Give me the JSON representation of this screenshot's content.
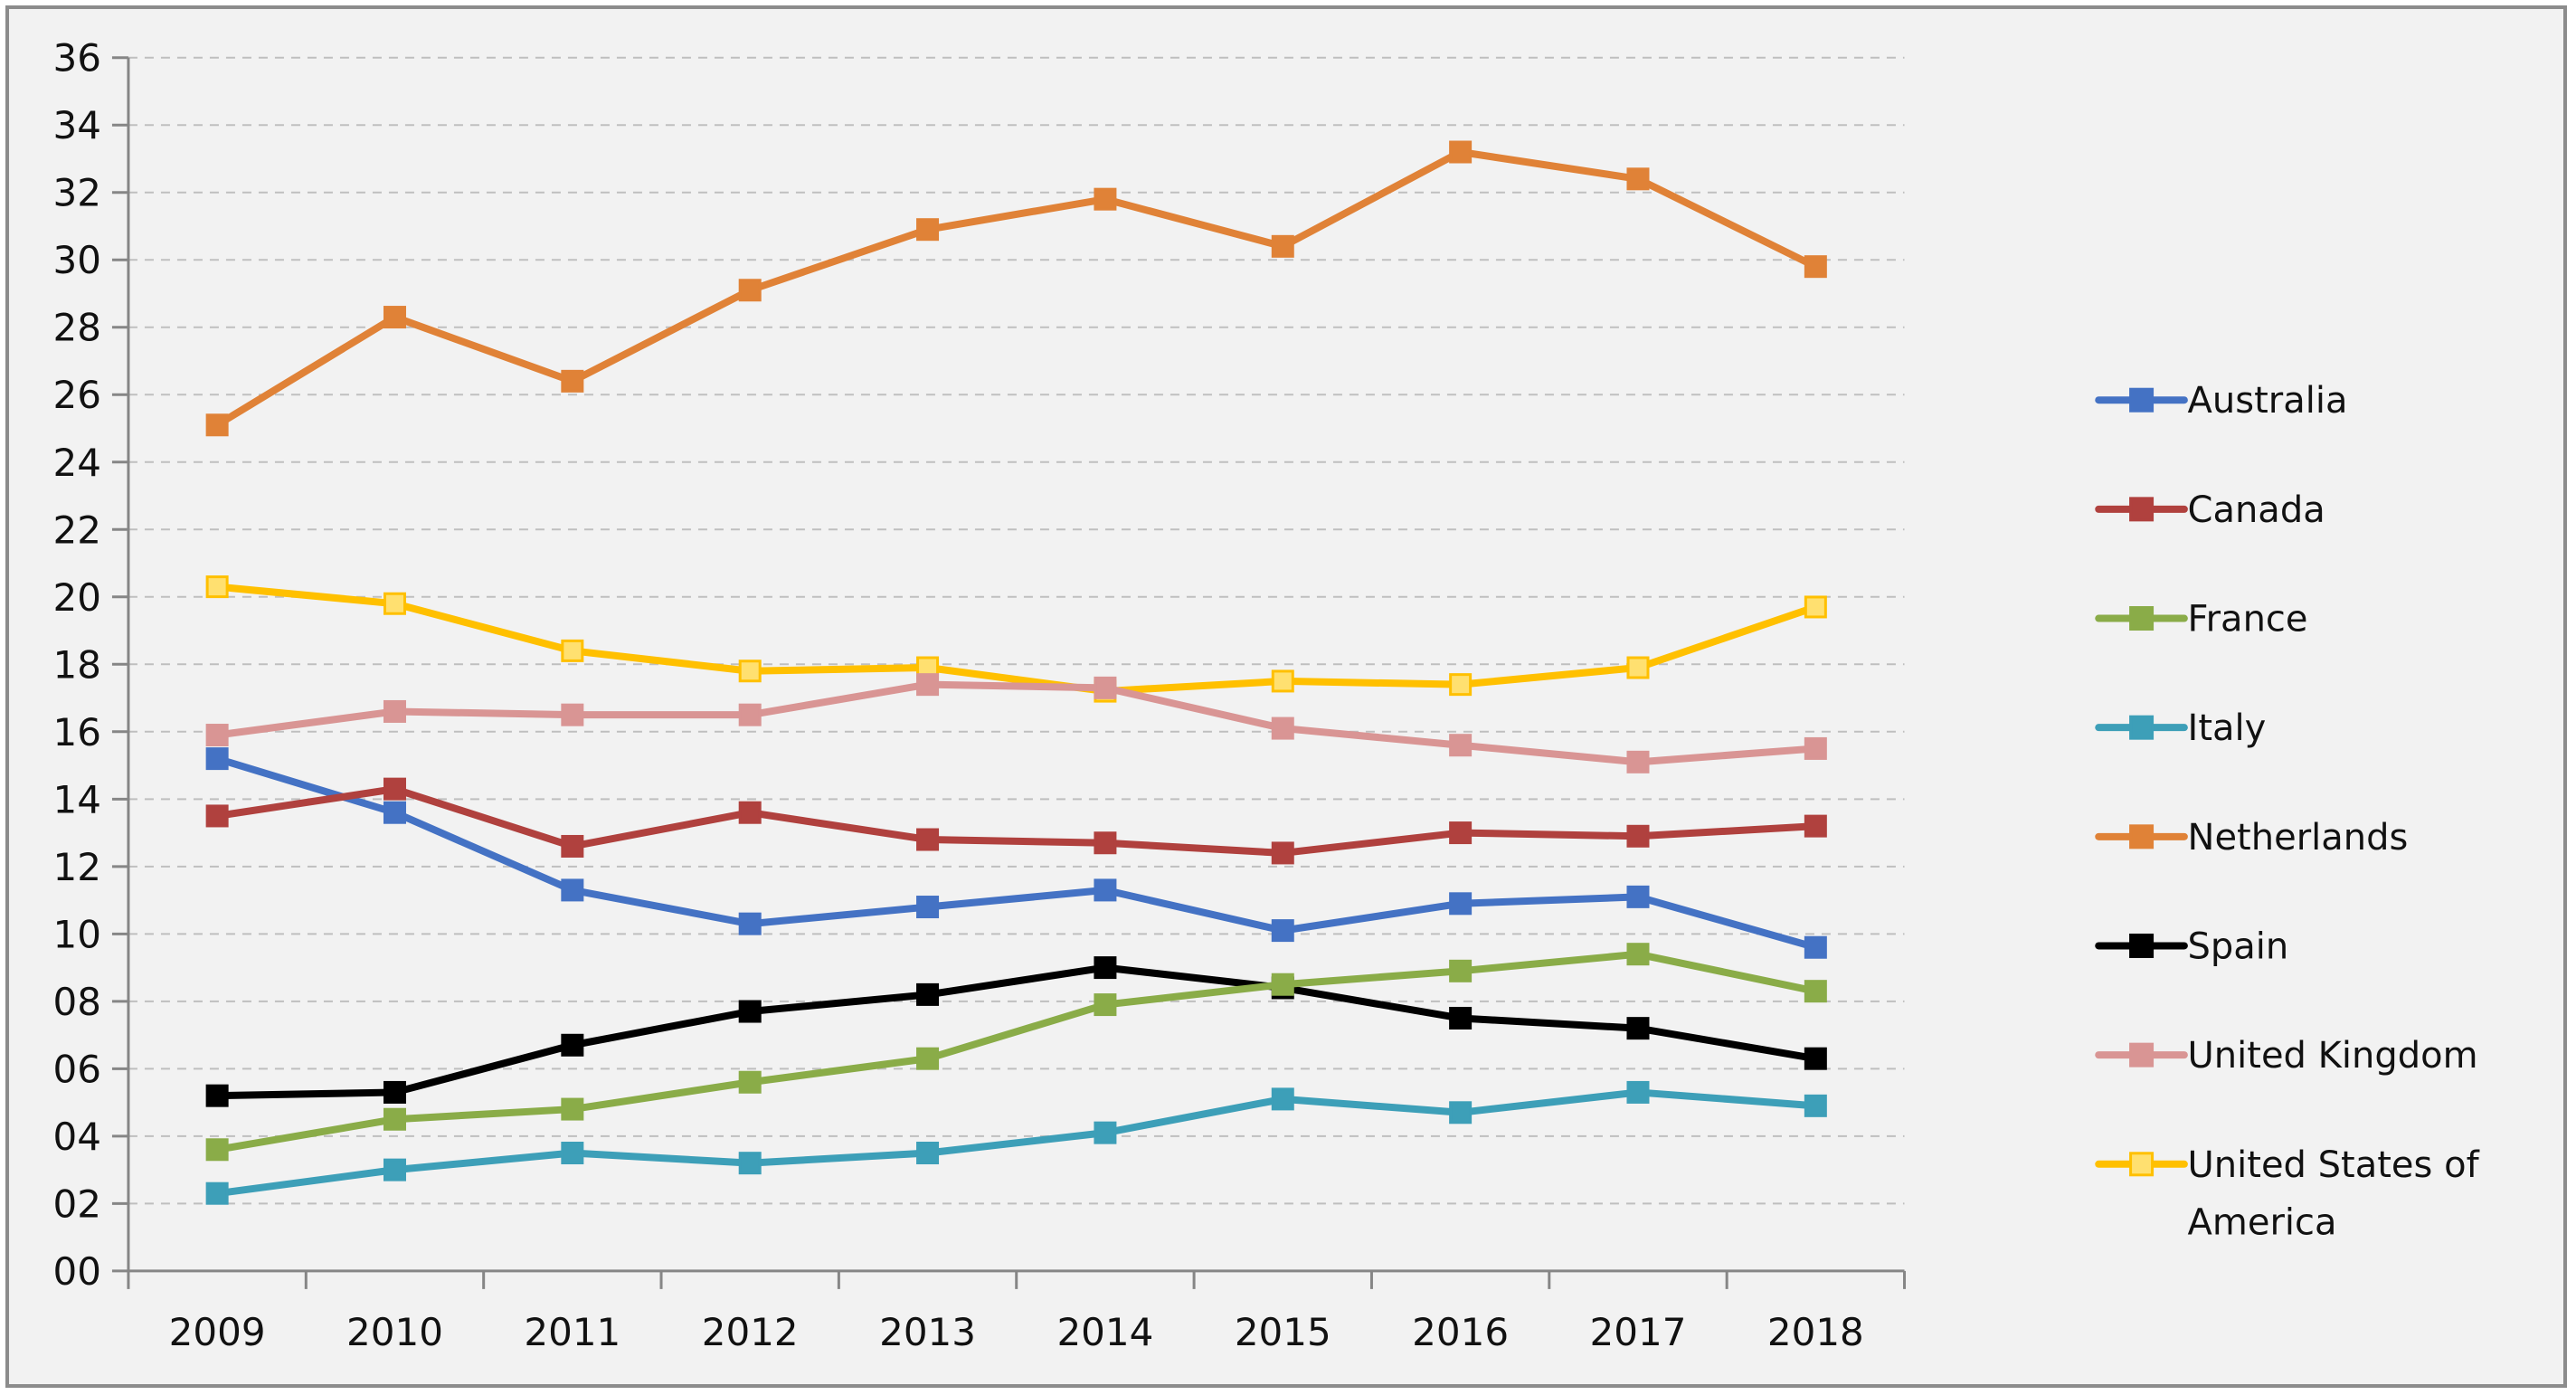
{
  "chart_data": {
    "type": "line",
    "title": "",
    "xlabel": "",
    "ylabel": "",
    "x": [
      "2009",
      "2010",
      "2011",
      "2012",
      "2013",
      "2014",
      "2015",
      "2016",
      "2017",
      "2018"
    ],
    "ylim": [
      0,
      36
    ],
    "yticks": [
      "00",
      "02",
      "04",
      "06",
      "08",
      "10",
      "12",
      "14",
      "16",
      "18",
      "20",
      "22",
      "24",
      "26",
      "28",
      "30",
      "32",
      "34",
      "36"
    ],
    "ytick_values": [
      0,
      2,
      4,
      6,
      8,
      10,
      12,
      14,
      16,
      18,
      20,
      22,
      24,
      26,
      28,
      30,
      32,
      34,
      36
    ],
    "grid": true,
    "legend_position": "right",
    "series": [
      {
        "name": "Australia",
        "color": "#4472c4",
        "marker_fill": "#4472c4",
        "values": [
          15.2,
          13.6,
          11.3,
          10.3,
          10.8,
          11.3,
          10.1,
          10.9,
          11.1,
          9.6
        ]
      },
      {
        "name": "Canada",
        "color": "#b0413e",
        "marker_fill": "#b0413e",
        "values": [
          13.5,
          14.3,
          12.6,
          13.6,
          12.8,
          12.7,
          12.4,
          13.0,
          12.9,
          13.2
        ]
      },
      {
        "name": "France",
        "color": "#8aac48",
        "marker_fill": "#8aac48",
        "values": [
          3.6,
          4.5,
          4.8,
          5.6,
          6.3,
          7.9,
          8.5,
          8.9,
          9.4,
          8.3
        ]
      },
      {
        "name": "Italy",
        "color": "#3d9fb8",
        "marker_fill": "#3d9fb8",
        "values": [
          2.3,
          3.0,
          3.5,
          3.2,
          3.5,
          4.1,
          5.1,
          4.7,
          5.3,
          4.9
        ]
      },
      {
        "name": "Netherlands",
        "color": "#e08237",
        "marker_fill": "#e08237",
        "values": [
          25.1,
          28.3,
          26.4,
          29.1,
          30.9,
          31.8,
          30.4,
          33.2,
          32.4,
          29.8
        ]
      },
      {
        "name": "Spain",
        "color": "#000000",
        "marker_fill": "#000000",
        "values": [
          5.2,
          5.3,
          6.7,
          7.7,
          8.2,
          9.0,
          8.4,
          7.5,
          7.2,
          6.3
        ]
      },
      {
        "name": "United Kingdom",
        "color": "#d99594",
        "marker_fill": "#d99594",
        "values": [
          15.9,
          16.6,
          16.5,
          16.5,
          17.4,
          17.3,
          16.1,
          15.6,
          15.1,
          15.5
        ]
      },
      {
        "name": "United States of America",
        "color": "#ffc000",
        "marker_fill": "#ffe070",
        "values": [
          20.3,
          19.8,
          18.4,
          17.8,
          17.9,
          17.2,
          17.5,
          17.4,
          17.9,
          19.7
        ]
      }
    ]
  }
}
